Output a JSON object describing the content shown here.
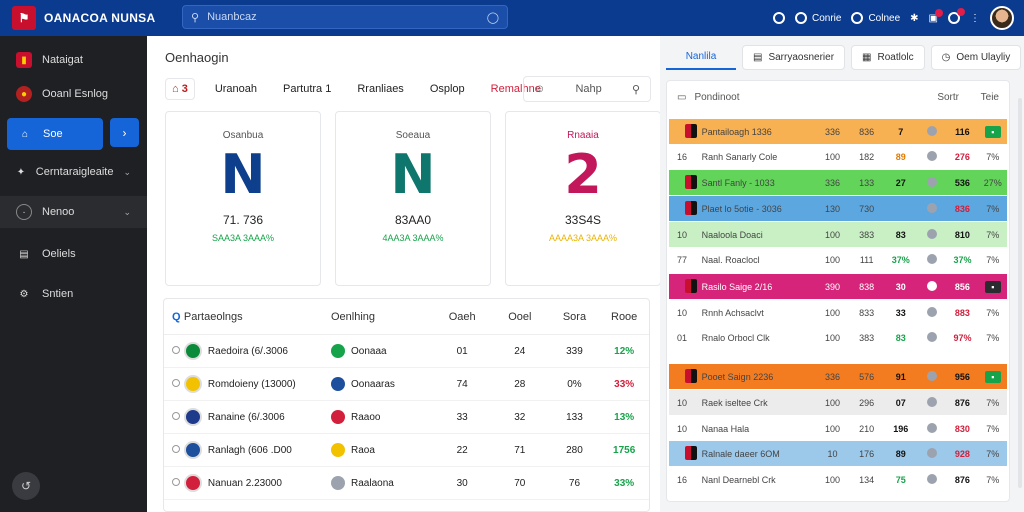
{
  "topbar": {
    "brand": "OANACOA NUNSA",
    "search_placeholder": "Nuanbcaz",
    "nav": [
      {
        "icon": "target-icon",
        "label": ""
      },
      {
        "icon": "circle-icon",
        "label": "Conrie"
      },
      {
        "icon": "person-icon",
        "label": "Colnee"
      },
      {
        "icon": "soccer-ball-icon",
        "label": ""
      },
      {
        "icon": "bell-icon",
        "label": ""
      },
      {
        "icon": "notification-icon",
        "label": ""
      }
    ]
  },
  "sidebar": {
    "items": [
      {
        "label": "Nataigat",
        "icon": "flag-icon"
      },
      {
        "label": "Ooanl Esnlog",
        "icon": "club-icon"
      },
      {
        "label": "Soe",
        "icon": "home-icon"
      },
      {
        "label": "Cerntaraigleaite",
        "icon": "puzzle-icon"
      },
      {
        "label": "Nenoo",
        "icon": "compass-icon"
      },
      {
        "label": "Oeliels",
        "icon": "chat-icon"
      },
      {
        "label": "Sntien",
        "icon": "settings-icon"
      }
    ]
  },
  "main": {
    "title": "Oenhaogin",
    "tabs": [
      "3",
      "Uranoah",
      "Partutra 1",
      "Rranliaes",
      "Osplop",
      "Remalhne"
    ],
    "filter_label": "Nahp",
    "cards": [
      {
        "title": "Osanbua",
        "big": "N",
        "value": "71. 736",
        "sub": "SAA3A 3AAA%",
        "color": "#0d3f8c",
        "sub_color": "#16a34a"
      },
      {
        "title": "Soeaua",
        "big": "N",
        "value": "83AA0",
        "sub": "4AA3A 3AAA%",
        "color": "#0f766e",
        "sub_color": "#16a34a"
      },
      {
        "title": "Rnaaia",
        "big": "2",
        "value": "33S4S",
        "sub": "AAAA3A 3AAA%",
        "color": "#c2185b",
        "sub_color": "#eab308"
      }
    ],
    "table": {
      "headers": [
        "Partaeolngs",
        "Oenlhing",
        "Oaeh",
        "Ooel",
        "Sora",
        "Rooe"
      ],
      "rows": [
        {
          "team": "Raedoira (6/.3006",
          "opp": "Oonaaa",
          "v1": "01",
          "v2": "24",
          "v3": "339",
          "v4": "12%",
          "v4c": "#16a34a",
          "crest": "#0b8a3a",
          "dot": "#16a34a"
        },
        {
          "team": "Romdoieny (13000)",
          "opp": "Oonaaras",
          "v1": "74",
          "v2": "28",
          "v3": "0%",
          "v4": "33%",
          "v4c": "#d11f3c",
          "crest": "#f2c200",
          "dot": "#1e4f9c"
        },
        {
          "team": "Ranaine (6/.3006",
          "opp": "Raaoo",
          "v1": "33",
          "v2": "32",
          "v3": "133",
          "v4": "13%",
          "v4c": "#16a34a",
          "crest": "#1e3a8a",
          "dot": "#d11f3c"
        },
        {
          "team": "Ranlagh (606 .D00",
          "opp": "Raoa",
          "v1": "22",
          "v2": "71",
          "v3": "280",
          "v4": "1756",
          "v4c": "#16a34a",
          "crest": "#1e4f9c",
          "dot": "#f2c200"
        },
        {
          "team": "Nanuan 2.23000",
          "opp": "Raalaona",
          "v1": "30",
          "v2": "70",
          "v3": "76",
          "v4": "33%",
          "v4c": "#16a34a",
          "crest": "#d11f3c",
          "dot": "#9ca3af"
        }
      ]
    }
  },
  "right": {
    "tabs": [
      "Nanlila",
      "Sarryaosnerier",
      "Roatlolc",
      "Oem Ulayliy"
    ],
    "panel_title": "Pondinoot",
    "col_a": "Sortr",
    "col_b": "Teie",
    "rows": [
      {
        "n": "",
        "team": "Pantailoagh 1336",
        "v1": "336",
        "v2": "836",
        "v3": "7",
        "v5": "116",
        "v6": "",
        "bg": "#f7b052",
        "v3c": "#111",
        "v5c": "#111",
        "tag": "#16a34a"
      },
      {
        "n": "16",
        "team": "Ranh Sanarly Cole",
        "v1": "100",
        "v2": "182",
        "v3": "89",
        "v5": "276",
        "v6": "7%",
        "bg": "#ffffff",
        "v3c": "#e07b00",
        "v5c": "#d11f3c",
        "tag": ""
      },
      {
        "n": "",
        "team": "Santl Fanly - 1033",
        "v1": "336",
        "v2": "133",
        "v3": "27",
        "v5": "536",
        "v6": "27%",
        "bg": "#62d45a",
        "v3c": "#111",
        "v5c": "#111",
        "tag": ""
      },
      {
        "n": "",
        "team": "Plaet lo 5otie - 3036",
        "v1": "130",
        "v2": "730",
        "v3": "",
        "v5": "836",
        "v6": "7%",
        "bg": "#5da7e0",
        "v3c": "#111",
        "v5c": "#d11f3c",
        "tag": ""
      },
      {
        "n": "10",
        "team": "Naaloola Doaci",
        "v1": "100",
        "v2": "383",
        "v3": "83",
        "v5": "810",
        "v6": "7%",
        "bg": "#c8f0c4",
        "v3c": "#111",
        "v5c": "#111",
        "tag": ""
      },
      {
        "n": "77",
        "team": "Naal. Roaclocl",
        "v1": "100",
        "v2": "111",
        "v3": "37%",
        "v5": "37%",
        "v6": "7%",
        "bg": "#ffffff",
        "v3c": "#16a34a",
        "v5c": "#16a34a",
        "tag": ""
      },
      {
        "n": "",
        "team": "Rasilo Saige 2/16",
        "v1": "390",
        "v2": "838",
        "v3": "30",
        "v5": "856",
        "v6": "",
        "bg": "#d6247a",
        "v3c": "#fff",
        "v5c": "#fff",
        "tag": "#2b2c30"
      },
      {
        "n": "10",
        "team": "Rnnh Achsaclvt",
        "v1": "100",
        "v2": "833",
        "v3": "33",
        "v5": "883",
        "v6": "7%",
        "bg": "#ffffff",
        "v3c": "#111",
        "v5c": "#d11f3c",
        "tag": ""
      },
      {
        "n": "01",
        "team": "Rnalo Orbocl Clk",
        "v1": "100",
        "v2": "383",
        "v3": "83",
        "v5": "97%",
        "v6": "7%",
        "bg": "#ffffff",
        "v3c": "#16a34a",
        "v5c": "#d11f3c",
        "tag": ""
      },
      {
        "n": "",
        "team": "Pooet Saign 2236",
        "v1": "336",
        "v2": "576",
        "v3": "91",
        "v5": "956",
        "v6": "",
        "bg": "#f47c20",
        "v3c": "#111",
        "v5c": "#111",
        "tag": "#16a34a"
      },
      {
        "n": "10",
        "team": "Raek iseltee Crk",
        "v1": "100",
        "v2": "296",
        "v3": "07",
        "v5": "876",
        "v6": "7%",
        "bg": "#ececec",
        "v3c": "#111",
        "v5c": "#111",
        "tag": ""
      },
      {
        "n": "10",
        "team": "Nanaa Hala",
        "v1": "100",
        "v2": "210",
        "v3": "196",
        "v5": "830",
        "v6": "7%",
        "bg": "#ffffff",
        "v3c": "#111",
        "v5c": "#d11f3c",
        "tag": ""
      },
      {
        "n": "",
        "team": "Ralnale daeer 6OM",
        "v1": "10",
        "v2": "176",
        "v3": "89",
        "v5": "928",
        "v6": "7%",
        "bg": "#9cc8ea",
        "v3c": "#111",
        "v5c": "#d11f3c",
        "tag": ""
      },
      {
        "n": "16",
        "team": "Nanl Dearnebl Crk",
        "v1": "100",
        "v2": "134",
        "v3": "75",
        "v5": "876",
        "v6": "7%",
        "bg": "#ffffff",
        "v3c": "#16a34a",
        "v5c": "#111",
        "tag": ""
      }
    ]
  },
  "colors": {
    "topbar": "#0b3b8f",
    "accent": "#1565d8",
    "sidebar": "#1f2023"
  }
}
